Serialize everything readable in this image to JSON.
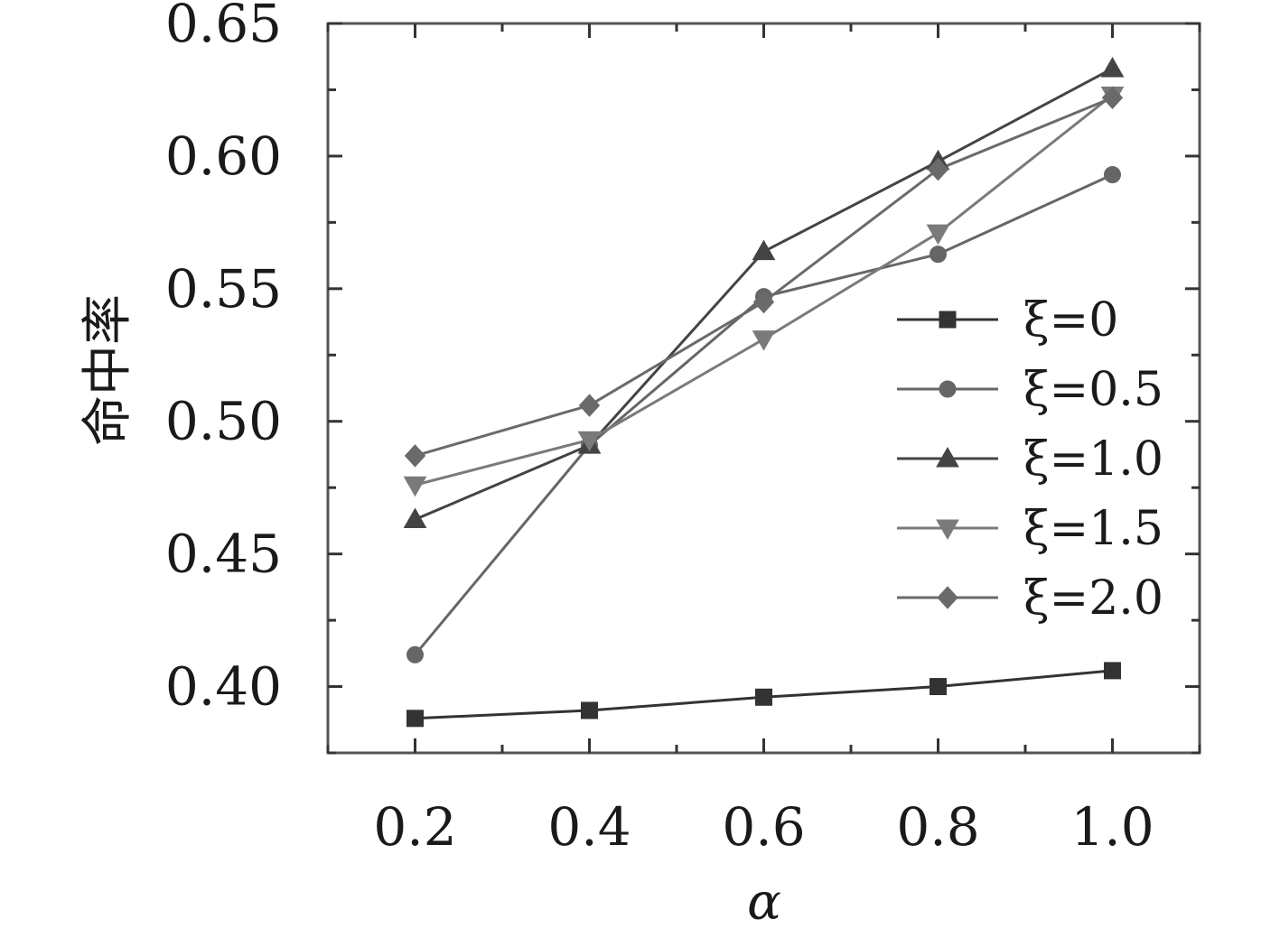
{
  "chart_data": {
    "type": "line",
    "title": "",
    "xlabel": "α",
    "ylabel": "命中率",
    "x": [
      0.2,
      0.4,
      0.6,
      0.8,
      1.0
    ],
    "x_tick_labels": [
      "0.2",
      "0.4",
      "0.6",
      "0.8",
      "1.0"
    ],
    "y_tick_labels": [
      "0.40",
      "0.45",
      "0.50",
      "0.55",
      "0.60",
      "0.65"
    ],
    "xlim": [
      0.1,
      1.1
    ],
    "ylim": [
      0.375,
      0.65
    ],
    "grid": false,
    "legend_position": "right",
    "series": [
      {
        "name": "ξ=0",
        "marker": "square",
        "color": "#333333",
        "values": [
          0.388,
          0.391,
          0.396,
          0.4,
          0.406
        ]
      },
      {
        "name": "ξ=0.5",
        "marker": "circle",
        "color": "#666666",
        "values": [
          0.412,
          0.491,
          0.547,
          0.563,
          0.593
        ]
      },
      {
        "name": "ξ=1.0",
        "marker": "triangle-up",
        "color": "#444444",
        "values": [
          0.463,
          0.491,
          0.564,
          0.598,
          0.633
        ]
      },
      {
        "name": "ξ=1.5",
        "marker": "triangle-down",
        "color": "#7a7a7a",
        "values": [
          0.476,
          0.493,
          0.531,
          0.571,
          0.623
        ]
      },
      {
        "name": "ξ=2.0",
        "marker": "diamond",
        "color": "#6a6a6a",
        "values": [
          0.487,
          0.506,
          0.545,
          0.595,
          0.622
        ]
      }
    ]
  }
}
